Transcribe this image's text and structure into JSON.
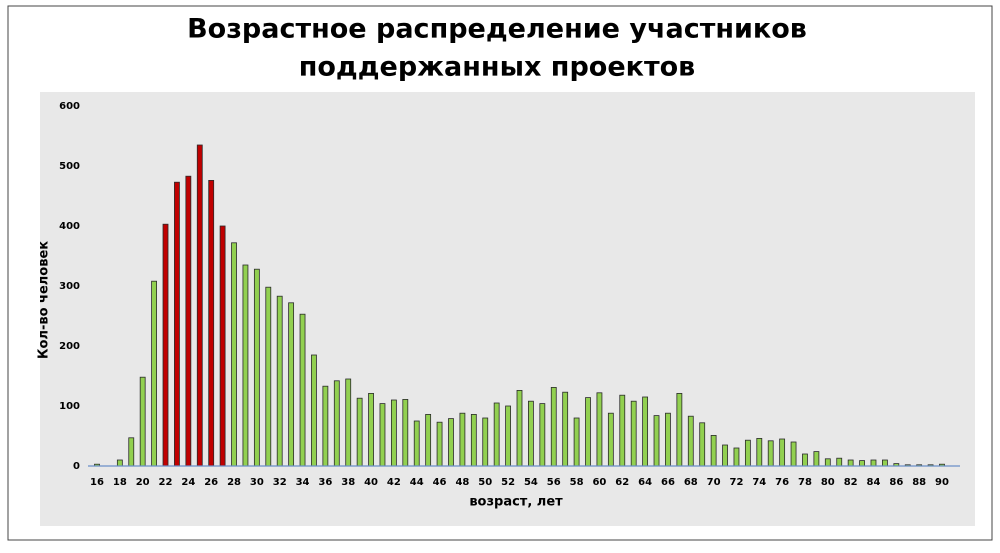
{
  "chart_data": {
    "type": "bar",
    "title": [
      "Возрастное распределение участников",
      "поддержанных проектов"
    ],
    "xlabel": "возраст, лет",
    "ylabel": "Кол-во человек",
    "categories": [
      "16",
      null,
      "18",
      null,
      "20",
      null,
      "22",
      null,
      "24",
      null,
      "26",
      null,
      "28",
      null,
      "30",
      null,
      "32",
      null,
      "34",
      null,
      "36",
      null,
      "38",
      null,
      "40",
      null,
      "42",
      null,
      "44",
      null,
      "46",
      null,
      "48",
      null,
      "50",
      null,
      "52",
      null,
      "54",
      null,
      "56",
      null,
      "58",
      null,
      "60",
      null,
      "62",
      null,
      "64",
      null,
      "66",
      null,
      "68",
      null,
      "70",
      null,
      "72",
      null,
      "74",
      null,
      "76",
      null,
      "78",
      null,
      "80",
      null,
      "82",
      null,
      "84",
      null,
      "86",
      null,
      "88",
      null,
      "90"
    ],
    "values": [
      3,
      0,
      10,
      47,
      148,
      308,
      403,
      473,
      483,
      535,
      476,
      400,
      372,
      335,
      328,
      298,
      283,
      272,
      253,
      185,
      133,
      142,
      145,
      113,
      121,
      104,
      110,
      111,
      75,
      86,
      73,
      79,
      88,
      86,
      80,
      105,
      100,
      126,
      108,
      104,
      131,
      123,
      80,
      114,
      122,
      88,
      118,
      108,
      115,
      84,
      88,
      121,
      83,
      72,
      51,
      35,
      30,
      43,
      46,
      42,
      45,
      40,
      20,
      24,
      12,
      13,
      10,
      9,
      10,
      10,
      4,
      2,
      2,
      2,
      3
    ],
    "colors": [
      "#92d050",
      "#92d050",
      "#92d050",
      "#92d050",
      "#92d050",
      "#92d050",
      "#c00000",
      "#c00000",
      "#c00000",
      "#c00000",
      "#c00000",
      "#c00000",
      "#92d050",
      "#92d050",
      "#92d050",
      "#92d050",
      "#92d050",
      "#92d050",
      "#92d050",
      "#92d050",
      "#92d050",
      "#92d050",
      "#92d050",
      "#92d050",
      "#92d050",
      "#92d050",
      "#92d050",
      "#92d050",
      "#92d050",
      "#92d050",
      "#92d050",
      "#92d050",
      "#92d050",
      "#92d050",
      "#92d050",
      "#92d050",
      "#92d050",
      "#92d050",
      "#92d050",
      "#92d050",
      "#92d050",
      "#92d050",
      "#92d050",
      "#92d050",
      "#92d050",
      "#92d050",
      "#92d050",
      "#92d050",
      "#92d050",
      "#92d050",
      "#92d050",
      "#92d050",
      "#92d050",
      "#92d050",
      "#92d050",
      "#92d050",
      "#92d050",
      "#92d050",
      "#92d050",
      "#92d050",
      "#92d050",
      "#92d050",
      "#92d050",
      "#92d050",
      "#92d050",
      "#92d050",
      "#92d050",
      "#92d050",
      "#92d050",
      "#92d050",
      "#92d050",
      "#92d050",
      "#92d050",
      "#92d050",
      "#92d050"
    ],
    "ylim": [
      0,
      600
    ],
    "yticks": [
      0,
      100,
      200,
      300,
      400,
      500,
      600
    ]
  }
}
